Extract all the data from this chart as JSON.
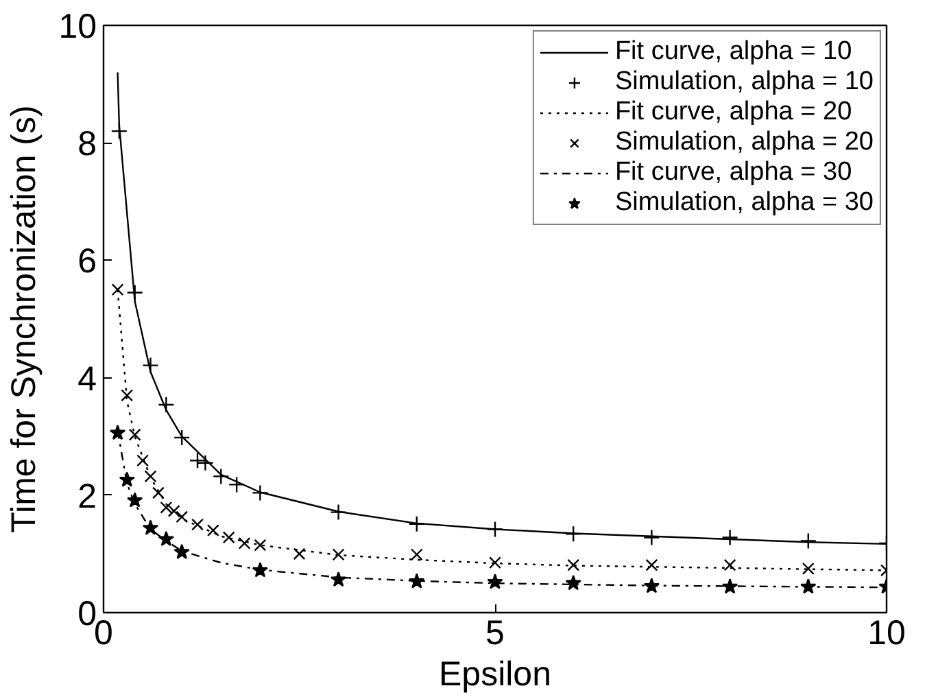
{
  "chart_data": {
    "type": "line",
    "xlabel": "Epsilon",
    "ylabel": "Time for Synchronization (s)",
    "xlim": [
      0,
      10
    ],
    "ylim": [
      0,
      10
    ],
    "xticks": [
      0,
      5,
      10
    ],
    "yticks": [
      0,
      2,
      4,
      6,
      8,
      10
    ],
    "grid": false,
    "legend": "top right",
    "series": [
      {
        "name": "Fit curve, alpha = 10",
        "color": "#000000",
        "line_style": "solid",
        "x": [
          0.18,
          0.2,
          0.4,
          0.6,
          0.8,
          1,
          1.5,
          2,
          3,
          4,
          5,
          6,
          7,
          8,
          9,
          10
        ],
        "values": [
          9.2,
          8.3,
          5.3,
          4.1,
          3.45,
          3.0,
          2.35,
          2.05,
          1.72,
          1.52,
          1.42,
          1.35,
          1.3,
          1.25,
          1.2,
          1.17
        ]
      },
      {
        "name": "Simulation, alpha = 10",
        "type": "scatter",
        "color": "#000000",
        "marker": "cross",
        "x": [
          0.2,
          0.4,
          0.6,
          0.8,
          1.0,
          1.2,
          1.3,
          1.5,
          1.7,
          2,
          3,
          4,
          5,
          6,
          7,
          8,
          9,
          10
        ],
        "values": [
          8.2,
          5.45,
          4.21,
          3.54,
          2.98,
          2.59,
          2.55,
          2.32,
          2.18,
          2.04,
          1.71,
          1.51,
          1.42,
          1.34,
          1.28,
          1.28,
          1.22,
          1.18
        ]
      },
      {
        "name": "Fit curve, alpha = 20",
        "color": "#000000",
        "line_style": "dotted",
        "x": [
          0.18,
          0.3,
          0.4,
          0.6,
          0.8,
          1,
          1.5,
          2,
          3,
          4,
          5,
          6,
          7,
          8,
          9,
          10
        ],
        "values": [
          5.5,
          3.6,
          3.0,
          2.3,
          1.85,
          1.6,
          1.3,
          1.15,
          0.98,
          0.9,
          0.84,
          0.8,
          0.78,
          0.76,
          0.74,
          0.72
        ]
      },
      {
        "name": "Simulation, alpha = 20",
        "type": "scatter",
        "color": "#000000",
        "marker": "x",
        "x": [
          0.18,
          0.3,
          0.4,
          0.5,
          0.6,
          0.7,
          0.8,
          0.9,
          1.0,
          1.2,
          1.4,
          1.6,
          1.8,
          2,
          2.5,
          3,
          4,
          5,
          6,
          7,
          8,
          9,
          10
        ],
        "values": [
          5.5,
          3.7,
          3.03,
          2.59,
          2.32,
          2.04,
          1.79,
          1.73,
          1.63,
          1.5,
          1.4,
          1.28,
          1.18,
          1.15,
          1.0,
          0.99,
          0.99,
          0.85,
          0.81,
          0.81,
          0.81,
          0.75,
          0.72
        ]
      },
      {
        "name": "Fit curve, alpha = 30",
        "color": "#000000",
        "line_style": "dashdot",
        "x": [
          0.18,
          0.3,
          0.4,
          0.6,
          0.8,
          1,
          1.5,
          2,
          3,
          4,
          5,
          6,
          7,
          8,
          9,
          10
        ],
        "values": [
          3.1,
          2.2,
          1.85,
          1.42,
          1.22,
          1.05,
          0.85,
          0.73,
          0.6,
          0.54,
          0.5,
          0.48,
          0.46,
          0.45,
          0.44,
          0.43
        ]
      },
      {
        "name": "Simulation, alpha = 30",
        "type": "scatter",
        "color": "#000000",
        "marker": "star",
        "x": [
          0.18,
          0.3,
          0.4,
          0.6,
          0.8,
          1.0,
          2,
          3,
          4,
          5,
          6,
          7,
          8,
          9,
          10
        ],
        "values": [
          3.06,
          2.26,
          1.91,
          1.44,
          1.25,
          1.03,
          0.72,
          0.56,
          0.53,
          0.52,
          0.5,
          0.45,
          0.44,
          0.44,
          0.44
        ]
      }
    ]
  }
}
